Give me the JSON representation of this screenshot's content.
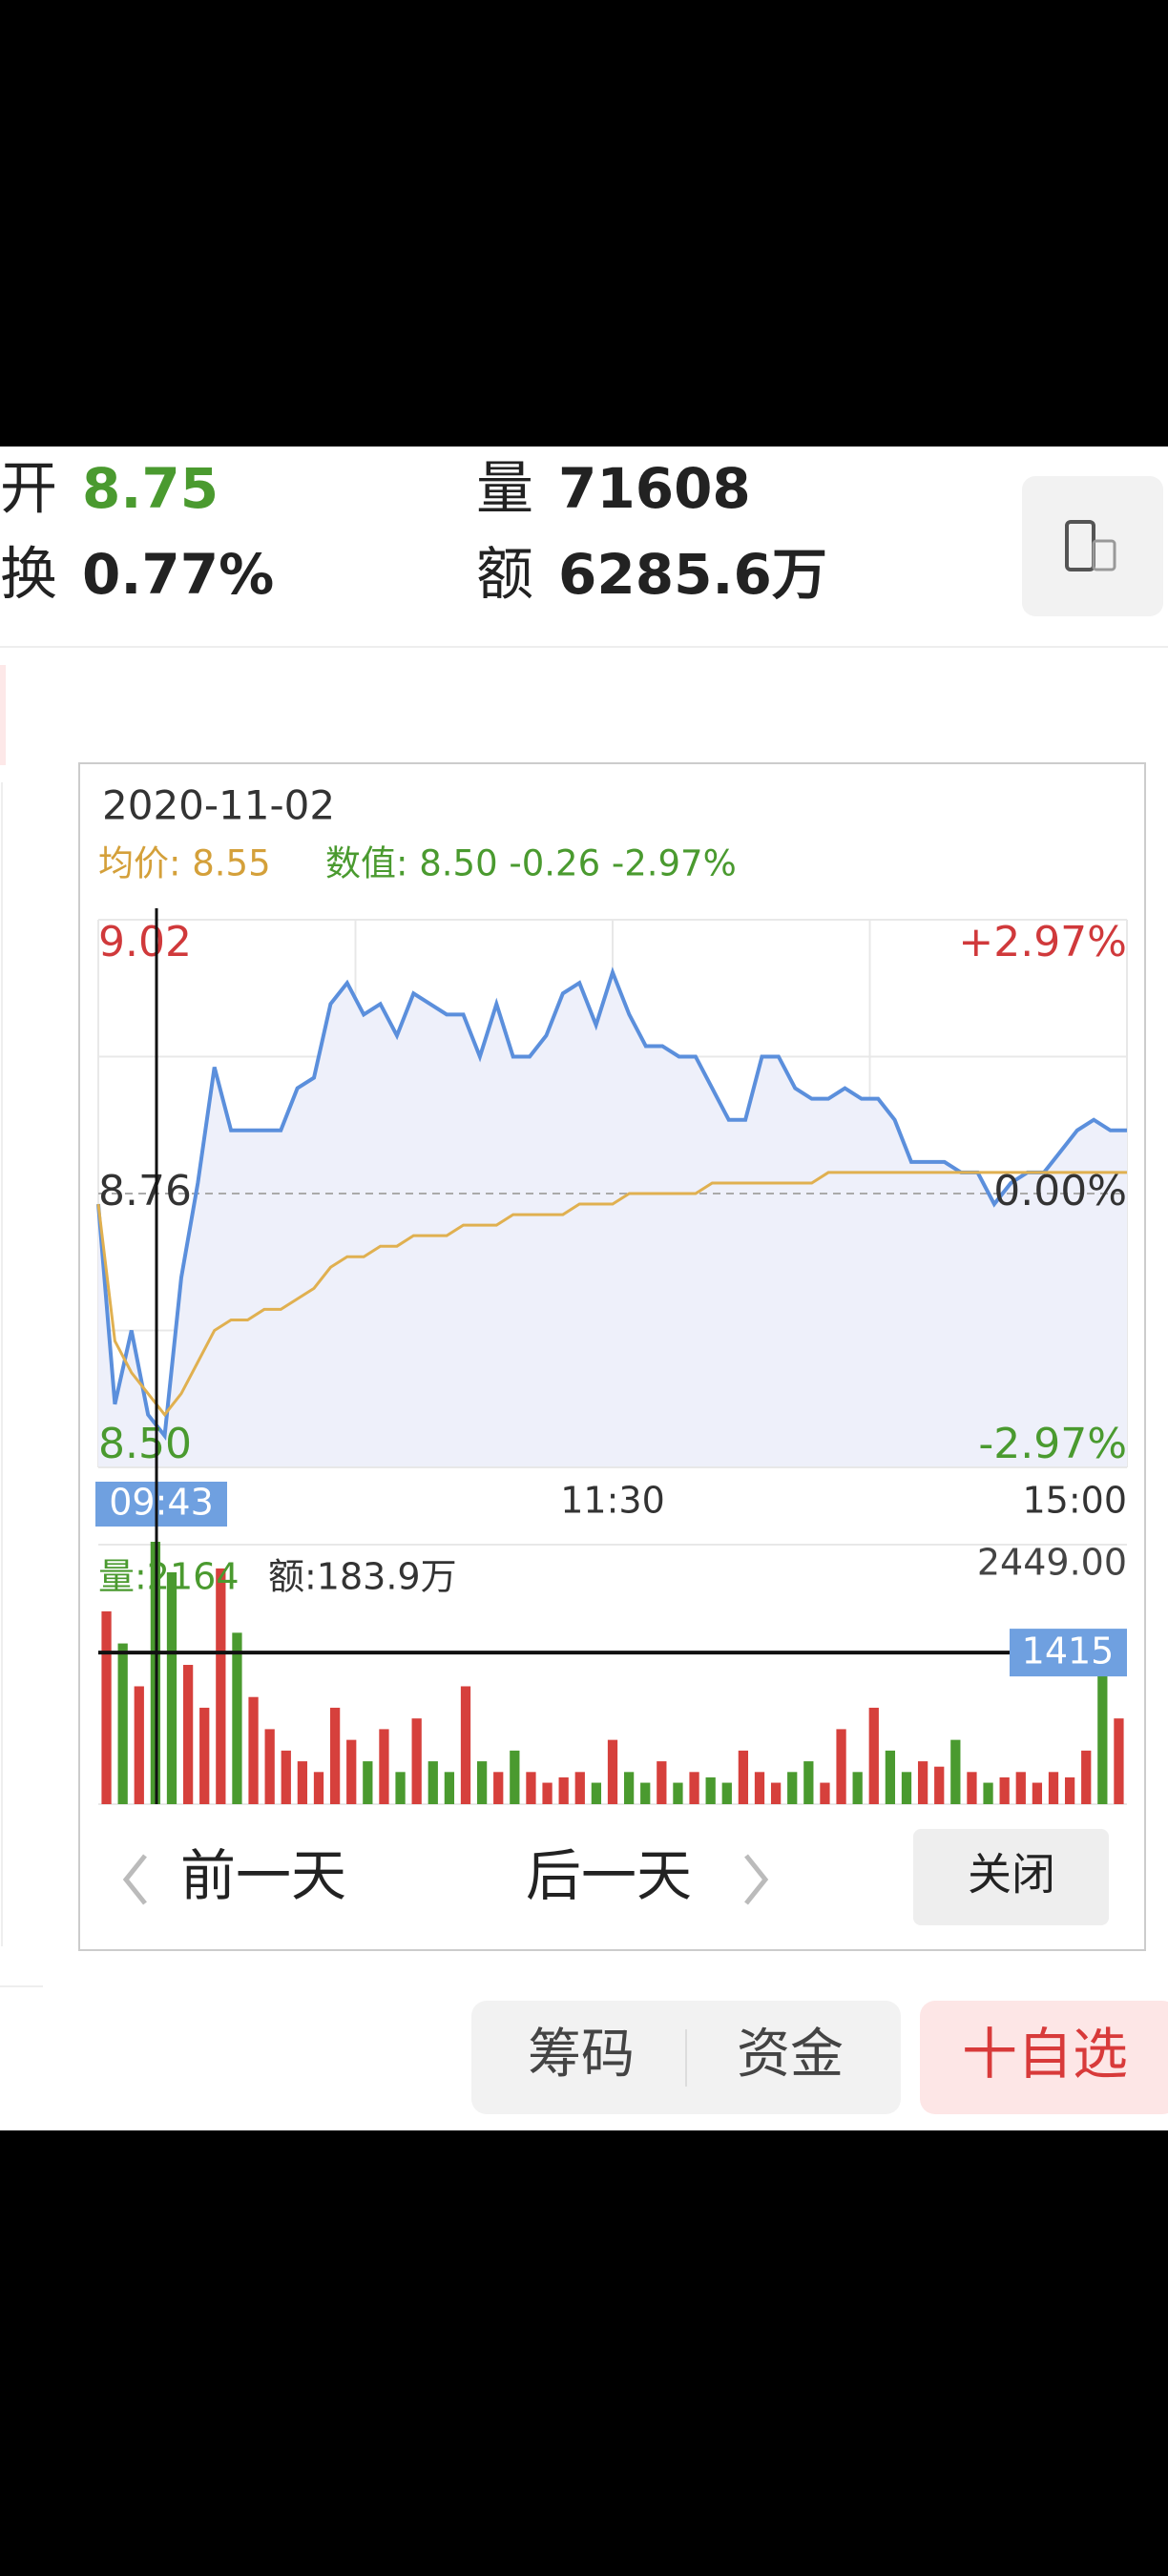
{
  "quote": {
    "open_label": "开",
    "open": "8.75",
    "turnover_label": "换",
    "turnover": "0.77%",
    "volume_label": "量",
    "volume": "71608",
    "amount_label": "额",
    "amount": "6285.6万"
  },
  "chart_data": {
    "type": "line",
    "date": "2020-11-02",
    "avg_label": "均价: 8.55",
    "value_label": "数值: 8.50 -0.26 -2.97%",
    "series": [
      {
        "color": "#5b8fdc",
        "values": [
          8.75,
          8.56,
          8.63,
          8.55,
          8.53,
          8.68,
          8.77,
          8.88,
          8.82,
          8.82,
          8.82,
          8.82,
          8.86,
          8.87,
          8.94,
          8.96,
          8.93,
          8.94,
          8.91,
          8.95,
          8.94,
          8.93,
          8.93,
          8.89,
          8.94,
          8.89,
          8.89,
          8.91,
          8.95,
          8.96,
          8.92,
          8.97,
          8.93,
          8.9,
          8.9,
          8.89,
          8.89,
          8.86,
          8.83,
          8.83,
          8.89,
          8.89,
          8.86,
          8.85,
          8.85,
          8.86,
          8.85,
          8.85,
          8.83,
          8.79,
          8.79,
          8.79,
          8.78,
          8.78,
          8.75,
          8.77,
          8.78,
          8.78,
          8.8,
          8.82,
          8.83,
          8.82,
          8.82
        ]
      },
      {
        "color": "#e0b050",
        "values": [
          8.75,
          8.62,
          8.59,
          8.57,
          8.55,
          8.57,
          8.6,
          8.63,
          8.64,
          8.64,
          8.65,
          8.65,
          8.66,
          8.67,
          8.69,
          8.7,
          8.7,
          8.71,
          8.71,
          8.72,
          8.72,
          8.72,
          8.73,
          8.73,
          8.73,
          8.74,
          8.74,
          8.74,
          8.74,
          8.75,
          8.75,
          8.75,
          8.76,
          8.76,
          8.76,
          8.76,
          8.76,
          8.77,
          8.77,
          8.77,
          8.77,
          8.77,
          8.77,
          8.77,
          8.78,
          8.78,
          8.78,
          8.78,
          8.78,
          8.78,
          8.78,
          8.78,
          8.78,
          8.78,
          8.78,
          8.78,
          8.78,
          8.78,
          8.78,
          8.78,
          8.78,
          8.78,
          8.78
        ]
      }
    ],
    "ylim": [
      8.5,
      9.02
    ],
    "yticks": [
      9.02,
      8.76,
      {
        "value": 8.5,
        "label": "8.50"
      }
    ],
    "y2lim": [
      -2.97,
      2.97
    ],
    "y2ticks": [
      {
        "value": 2.97,
        "label": "+2.97%"
      },
      {
        "value": 0,
        "label": "0.00%"
      },
      {
        "value": -2.97,
        "label": "-2.97%"
      }
    ],
    "cursor_time": "09:43",
    "x_labels": [
      "11:30",
      "15:00"
    ],
    "grid": true,
    "volume_panel": {
      "vol_label": "量:2164",
      "amt_label": "额:183.9万",
      "ylim": [
        0,
        2449
      ],
      "top_tick": {
        "value": 2449,
        "label": "2449.00"
      },
      "cursor_value": 1415,
      "up_color": "#d6403c",
      "down_color": "#4a9a2f",
      "values": [
        1800,
        1500,
        1100,
        2449,
        2164,
        1300,
        900,
        2200,
        1600,
        1000,
        700,
        500,
        400,
        300,
        900,
        600,
        400,
        700,
        300,
        800,
        400,
        300,
        1100,
        400,
        300,
        500,
        300,
        200,
        250,
        300,
        200,
        600,
        300,
        200,
        400,
        200,
        300,
        250,
        200,
        500,
        300,
        200,
        300,
        400,
        200,
        700,
        300,
        900,
        500,
        300,
        400,
        350,
        600,
        300,
        200,
        250,
        300,
        200,
        300,
        250,
        500,
        1415,
        800
      ]
    }
  },
  "nav": {
    "prev": "前一天",
    "next": "后一天",
    "close": "关闭"
  },
  "bottom": {
    "chips": "筹码",
    "funds": "资金",
    "add": "十自选"
  }
}
